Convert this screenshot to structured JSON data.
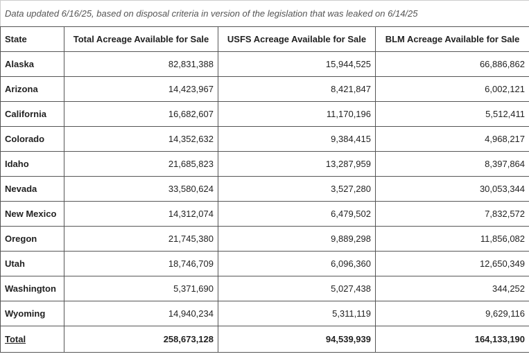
{
  "caption": "Data updated 6/16/25, based on disposal criteria in version of the legislation that was leaked on 6/14/25",
  "table": {
    "header": [
      "State",
      "Total Acreage Available for Sale",
      "USFS Acreage Available for Sale",
      "BLM Acreage Available for Sale"
    ],
    "rows": [
      [
        "Alaska",
        "82,831,388",
        "15,944,525",
        "66,886,862"
      ],
      [
        "Arizona",
        "14,423,967",
        "8,421,847",
        "6,002,121"
      ],
      [
        "California",
        "16,682,607",
        "11,170,196",
        "5,512,411"
      ],
      [
        "Colorado",
        "14,352,632",
        "9,384,415",
        "4,968,217"
      ],
      [
        "Idaho",
        "21,685,823",
        "13,287,959",
        "8,397,864"
      ],
      [
        "Nevada",
        "33,580,624",
        "3,527,280",
        "30,053,344"
      ],
      [
        "New Mexico",
        "14,312,074",
        "6,479,502",
        "7,832,572"
      ],
      [
        "Oregon",
        "21,745,380",
        "9,889,298",
        "11,856,082"
      ],
      [
        "Utah",
        "18,746,709",
        "6,096,360",
        "12,650,349"
      ],
      [
        "Washington",
        "5,371,690",
        "5,027,438",
        "344,252"
      ],
      [
        "Wyoming",
        "14,940,234",
        "5,311,119",
        "9,629,116"
      ]
    ],
    "footer": [
      "Total",
      "258,673,128",
      "94,539,939",
      "164,133,190"
    ]
  }
}
